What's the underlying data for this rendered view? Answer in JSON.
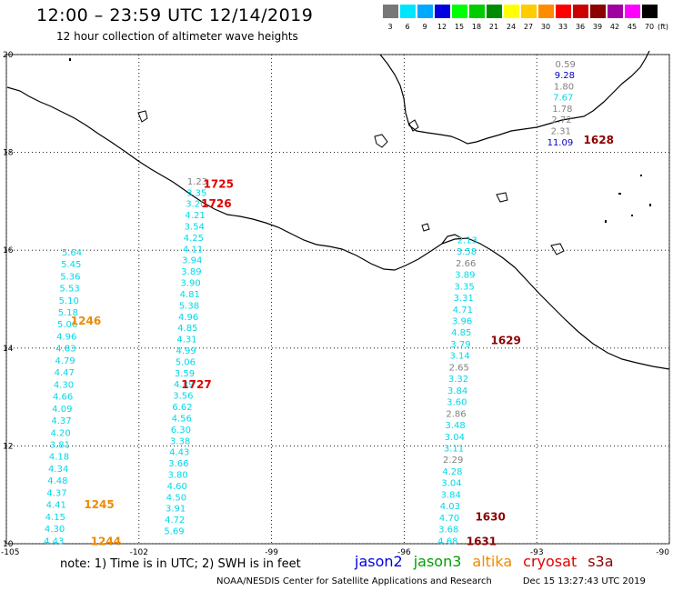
{
  "header": {
    "title": "12:00 – 23:59 UTC 12/14/2019",
    "subtitle": "12 hour collection of altimeter wave heights"
  },
  "legend": {
    "swatches": [
      {
        "color": "#777777",
        "label": "3"
      },
      {
        "color": "#00e5ff",
        "label": "6"
      },
      {
        "color": "#00a8ff",
        "label": "9"
      },
      {
        "color": "#0000e0",
        "label": "12"
      },
      {
        "color": "#00ff00",
        "label": "15"
      },
      {
        "color": "#00cc00",
        "label": "18"
      },
      {
        "color": "#008c00",
        "label": "21"
      },
      {
        "color": "#ffff00",
        "label": "24"
      },
      {
        "color": "#ffcc00",
        "label": "27"
      },
      {
        "color": "#ff8c00",
        "label": "30"
      },
      {
        "color": "#ff0000",
        "label": "33"
      },
      {
        "color": "#cc0000",
        "label": "36"
      },
      {
        "color": "#8b0000",
        "label": "39"
      },
      {
        "color": "#a000a0",
        "label": "42"
      },
      {
        "color": "#ff00ff",
        "label": "45"
      },
      {
        "color": "#000000",
        "label": "70"
      }
    ],
    "unit": "(ft)"
  },
  "map": {
    "lon_ticks": [
      "-105",
      "-102",
      "-99",
      "-96",
      "-93",
      "-90"
    ],
    "lat_ticks": [
      "20",
      "18",
      "16",
      "14",
      "12",
      "10"
    ]
  },
  "colors": {
    "gray": "#808080",
    "cyan": "#00d8e8",
    "navy": "#0000c0",
    "orange": "#ee8a00",
    "red": "#e00000",
    "darkred": "#8b0000"
  },
  "tracks": [
    {
      "lon": -103.73,
      "lat_start": 15.95,
      "lat_end": 10.05,
      "values": [
        "5.64",
        "5.45",
        "5.36",
        "5.53",
        "5.10",
        "5.18",
        "5.06",
        "4.96",
        "4.83",
        "4.79",
        "4.47",
        "4.30",
        "4.66",
        "4.09",
        "4.37",
        "4.20",
        "3.81",
        "4.18",
        "4.34",
        "4.48",
        "4.37",
        "4.41",
        "4.15",
        "4.30",
        "4.43"
      ],
      "colors": [
        "cyan"
      ]
    },
    {
      "lon": -100.95,
      "lat_start": 17.4,
      "lat_end": 10.25,
      "values": [
        "1.23",
        "3.35",
        "3.20",
        "4.21",
        "3.54",
        "4.25",
        "4.11",
        "3.94",
        "3.89",
        "3.90",
        "4.81",
        "5.38",
        "4.96",
        "4.85",
        "4.31",
        "4.99",
        "5.06",
        "3.59",
        "4.39",
        "3.56",
        "6.62",
        "4.56",
        "6.30",
        "3.38",
        "4.43",
        "3.66",
        "3.80",
        "4.60",
        "4.50",
        "3.91",
        "4.72",
        "5.69"
      ],
      "colors": [
        "gray",
        "cyan"
      ]
    },
    {
      "lon": -92.42,
      "lat_start": 19.8,
      "lat_end": 18.2,
      "values": [
        "0.59",
        "9.28",
        "1.80",
        "7.67",
        "1.78",
        "2.72",
        "2.31",
        "11.09"
      ],
      "colors": [
        "gray",
        "navy",
        "gray",
        "cyan",
        "gray",
        "gray",
        "gray",
        "navy"
      ]
    },
    {
      "lon": -94.8,
      "lat_start": 16.2,
      "lat_end": 10.05,
      "values": [
        "2.13",
        "3.58",
        "2.66",
        "3.89",
        "3.35",
        "3.31",
        "4.71",
        "3.96",
        "4.85",
        "3.79",
        "3.14",
        "2.65",
        "3.32",
        "3.84",
        "3.60",
        "2.86",
        "3.48",
        "3.04",
        "3.11",
        "2.29",
        "4.28",
        "3.04",
        "3.84",
        "4.03",
        "4.70",
        "3.68",
        "4.68"
      ],
      "colors": [
        "cyan",
        "cyan",
        "gray",
        "cyan",
        "cyan",
        "cyan",
        "cyan",
        "cyan",
        "cyan",
        "cyan",
        "cyan",
        "gray",
        "cyan",
        "cyan",
        "cyan",
        "gray",
        "cyan",
        "cyan",
        "cyan",
        "gray",
        "cyan",
        "cyan",
        "cyan",
        "cyan",
        "cyan",
        "cyan",
        "cyan"
      ]
    }
  ],
  "time_labels": [
    {
      "text": "1725",
      "lon": -100.2,
      "lat": 17.35,
      "color": "red"
    },
    {
      "text": "1726",
      "lon": -100.25,
      "lat": 16.95,
      "color": "red"
    },
    {
      "text": "1727",
      "lon": -100.7,
      "lat": 13.25,
      "color": "red"
    },
    {
      "text": "1628",
      "lon": -91.6,
      "lat": 18.25,
      "color": "darkred"
    },
    {
      "text": "1629",
      "lon": -93.7,
      "lat": 14.15,
      "color": "darkred"
    },
    {
      "text": "1630",
      "lon": -94.05,
      "lat": 10.55,
      "color": "darkred"
    },
    {
      "text": "1631",
      "lon": -94.25,
      "lat": 10.05,
      "color": "darkred"
    },
    {
      "text": "1246",
      "lon": -103.2,
      "lat": 14.55,
      "color": "orange"
    },
    {
      "text": "1245",
      "lon": -102.9,
      "lat": 10.8,
      "color": "orange"
    },
    {
      "text": "1244",
      "lon": -102.75,
      "lat": 10.05,
      "color": "orange"
    }
  ],
  "footer": {
    "note": "note:  1) Time is in UTC;  2) SWH is in feet",
    "satellites": [
      {
        "name": "jason2",
        "color": "#0000e0"
      },
      {
        "name": "jason3",
        "color": "#00a000"
      },
      {
        "name": "altika",
        "color": "#ee8a00"
      },
      {
        "name": "cryosat",
        "color": "#e00000"
      },
      {
        "name": "s3a",
        "color": "#8b0000"
      }
    ],
    "credit": "NOAA/NESDIS Center for Satellite Applications and Research",
    "timestamp": "Dec 15 13:27:43 UTC 2019"
  }
}
